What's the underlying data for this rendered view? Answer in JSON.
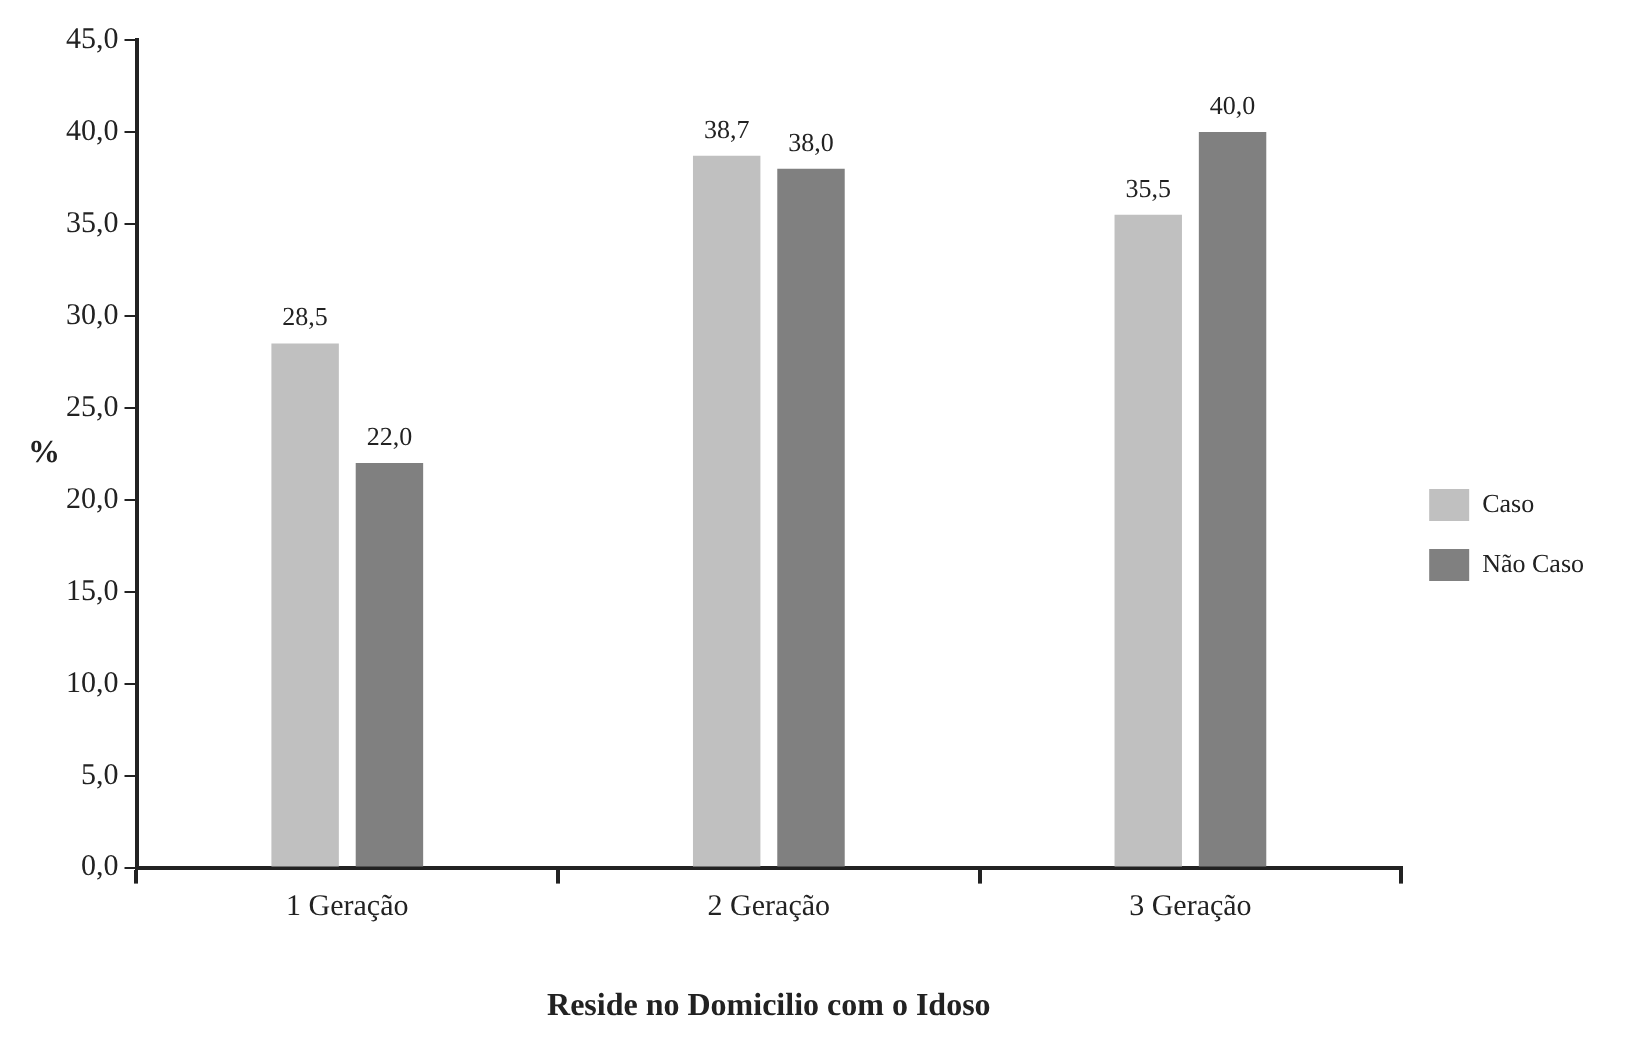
{
  "chart_data": {
    "type": "bar",
    "xlabel": "Reside no Domicilio com o Idoso",
    "ylabel": "%",
    "categories": [
      "1 Geração",
      "2 Geração",
      "3 Geração"
    ],
    "series": [
      {
        "name": "Caso",
        "color": "#c0c0c0",
        "values": [
          28.5,
          38.7,
          35.5
        ],
        "value_labels": [
          "28,5",
          "38,7",
          "35,5"
        ]
      },
      {
        "name": "Não Caso",
        "color": "#808080",
        "values": [
          22.0,
          38.0,
          40.0
        ],
        "value_labels": [
          "22,0",
          "38,0",
          "40,0"
        ]
      }
    ],
    "ylim": [
      0,
      45
    ],
    "yticks": [
      {
        "value": 0,
        "label": "0,0"
      },
      {
        "value": 5,
        "label": "5,0"
      },
      {
        "value": 10,
        "label": "10,0"
      },
      {
        "value": 15,
        "label": "15,0"
      },
      {
        "value": 20,
        "label": "20,0"
      },
      {
        "value": 25,
        "label": "25,0"
      },
      {
        "value": 30,
        "label": "30,0"
      },
      {
        "value": 35,
        "label": "35,0"
      },
      {
        "value": 40,
        "label": "40,0"
      },
      {
        "value": 45,
        "label": "45,0"
      }
    ],
    "grid": false,
    "legend": "right"
  }
}
